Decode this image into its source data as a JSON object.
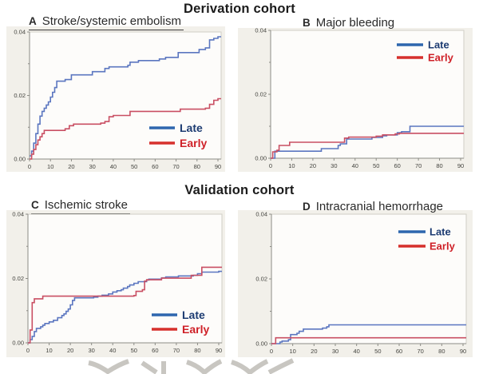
{
  "headings": {
    "derivation": "Derivation cohort",
    "validation": "Validation cohort"
  },
  "legend": {
    "late_label": "Late",
    "early_label": "Early"
  },
  "colors": {
    "late_curve": "#5b76c0",
    "early_curve": "#c94f63",
    "late_swatch": "#2e66ae",
    "early_swatch": "#d6302c",
    "late_text": "#1d3c72",
    "early_text": "#cf2128",
    "axis": "#8c8c86",
    "frame": "#d0cec7",
    "panel_bg": "#f2f0ea",
    "plot_bg": "#fdfcfa",
    "tick_text": "#44443f",
    "watermark": "#c8c6c1"
  },
  "chart_data": [
    {
      "id": "A",
      "panel_letter": "A",
      "title": "Stroke/systemic embolism",
      "type": "line",
      "step": true,
      "xlim": [
        0,
        90
      ],
      "ylim": [
        0,
        0.04
      ],
      "x_ticks": [
        0,
        10,
        20,
        30,
        40,
        50,
        60,
        70,
        80,
        90
      ],
      "y_ticks": [
        {
          "v": 0,
          "label": "0.00"
        },
        {
          "v": 0.02,
          "label": "0.02"
        },
        {
          "v": 0.04,
          "label": "0.04"
        }
      ],
      "y_minor_ticks": [
        0.01,
        0.03
      ],
      "legend_position": "middle-right",
      "series": [
        {
          "name": "Late",
          "key": "late",
          "points": [
            [
              0,
              0.001
            ],
            [
              1,
              0.0025
            ],
            [
              2,
              0.005
            ],
            [
              3,
              0.008
            ],
            [
              4,
              0.011
            ],
            [
              5,
              0.0135
            ],
            [
              6,
              0.015
            ],
            [
              7,
              0.016
            ],
            [
              8,
              0.017
            ],
            [
              9,
              0.018
            ],
            [
              10,
              0.0195
            ],
            [
              11,
              0.021
            ],
            [
              12,
              0.0225
            ],
            [
              13,
              0.0245
            ],
            [
              17,
              0.025
            ],
            [
              20,
              0.0265
            ],
            [
              30,
              0.0275
            ],
            [
              36,
              0.0285
            ],
            [
              38,
              0.029
            ],
            [
              47,
              0.0295
            ],
            [
              48,
              0.0305
            ],
            [
              52,
              0.031
            ],
            [
              62,
              0.0315
            ],
            [
              65,
              0.032
            ],
            [
              71,
              0.0335
            ],
            [
              81,
              0.0345
            ],
            [
              84,
              0.035
            ],
            [
              86,
              0.0375
            ],
            [
              88,
              0.038
            ],
            [
              90,
              0.0385
            ]
          ]
        },
        {
          "name": "Early",
          "key": "early",
          "points": [
            [
              0,
              0
            ],
            [
              1,
              0.0015
            ],
            [
              2,
              0.003
            ],
            [
              3,
              0.0045
            ],
            [
              4,
              0.006
            ],
            [
              5,
              0.007
            ],
            [
              6,
              0.008
            ],
            [
              7,
              0.009
            ],
            [
              17,
              0.0095
            ],
            [
              19,
              0.0105
            ],
            [
              21,
              0.011
            ],
            [
              34,
              0.0113
            ],
            [
              36,
              0.0118
            ],
            [
              38,
              0.0133
            ],
            [
              40,
              0.0137
            ],
            [
              48,
              0.015
            ],
            [
              72,
              0.0157
            ],
            [
              84,
              0.016
            ],
            [
              86,
              0.0172
            ],
            [
              88,
              0.0185
            ],
            [
              90,
              0.019
            ]
          ]
        }
      ]
    },
    {
      "id": "B",
      "panel_letter": "B",
      "title": "Major bleeding",
      "type": "line",
      "step": true,
      "xlim": [
        0,
        90
      ],
      "ylim": [
        0,
        0.04
      ],
      "x_ticks": [
        0,
        10,
        20,
        30,
        40,
        50,
        60,
        70,
        80,
        90
      ],
      "y_ticks": [
        {
          "v": 0,
          "label": "0.00"
        },
        {
          "v": 0.02,
          "label": "0.02"
        },
        {
          "v": 0.04,
          "label": "0.04"
        }
      ],
      "y_minor_ticks": [
        0.01,
        0.03
      ],
      "legend_position": "top-right",
      "series": [
        {
          "name": "Late",
          "key": "late",
          "points": [
            [
              0,
              0
            ],
            [
              2,
              0.0022
            ],
            [
              24,
              0.003
            ],
            [
              32,
              0.004
            ],
            [
              33,
              0.0045
            ],
            [
              36,
              0.006
            ],
            [
              48,
              0.0065
            ],
            [
              53,
              0.007
            ],
            [
              55,
              0.0073
            ],
            [
              60,
              0.008
            ],
            [
              62,
              0.0083
            ],
            [
              66,
              0.01
            ],
            [
              90,
              0.01
            ]
          ]
        },
        {
          "name": "Early",
          "key": "early",
          "points": [
            [
              0,
              0
            ],
            [
              1,
              0.002
            ],
            [
              3,
              0.0025
            ],
            [
              4,
              0.004
            ],
            [
              9,
              0.005
            ],
            [
              35,
              0.0063
            ],
            [
              37,
              0.0066
            ],
            [
              50,
              0.0069
            ],
            [
              53,
              0.0073
            ],
            [
              59,
              0.0076
            ],
            [
              61,
              0.0078
            ],
            [
              90,
              0.0078
            ]
          ]
        }
      ]
    },
    {
      "id": "C",
      "panel_letter": "C",
      "title": "Ischemic stroke",
      "type": "line",
      "step": true,
      "xlim": [
        0,
        90
      ],
      "ylim": [
        0,
        0.04
      ],
      "x_ticks": [
        0,
        10,
        20,
        30,
        40,
        50,
        60,
        70,
        80,
        90
      ],
      "y_ticks": [
        {
          "v": 0,
          "label": "0.00"
        },
        {
          "v": 0.02,
          "label": "0.02"
        },
        {
          "v": 0.04,
          "label": "0.04"
        }
      ],
      "y_minor_ticks": [
        0.01,
        0.03
      ],
      "legend_position": "bottom-right",
      "series": [
        {
          "name": "Late",
          "key": "late",
          "points": [
            [
              0,
              0
            ],
            [
              1,
              0.001
            ],
            [
              2,
              0.002
            ],
            [
              3,
              0.0035
            ],
            [
              4,
              0.0045
            ],
            [
              6,
              0.005
            ],
            [
              7,
              0.0055
            ],
            [
              8,
              0.006
            ],
            [
              10,
              0.0065
            ],
            [
              12,
              0.007
            ],
            [
              14,
              0.0078
            ],
            [
              16,
              0.0085
            ],
            [
              17,
              0.009
            ],
            [
              18,
              0.0098
            ],
            [
              19,
              0.0105
            ],
            [
              20,
              0.0118
            ],
            [
              21,
              0.0132
            ],
            [
              22,
              0.014
            ],
            [
              31,
              0.0142
            ],
            [
              33,
              0.0145
            ],
            [
              35,
              0.0148
            ],
            [
              38,
              0.0152
            ],
            [
              40,
              0.0158
            ],
            [
              42,
              0.0162
            ],
            [
              44,
              0.0165
            ],
            [
              45,
              0.017
            ],
            [
              47,
              0.0175
            ],
            [
              48,
              0.018
            ],
            [
              50,
              0.0185
            ],
            [
              52,
              0.019
            ],
            [
              56,
              0.0195
            ],
            [
              57,
              0.0198
            ],
            [
              63,
              0.0202
            ],
            [
              65,
              0.0205
            ],
            [
              71,
              0.0208
            ],
            [
              78,
              0.021
            ],
            [
              80,
              0.0215
            ],
            [
              82,
              0.022
            ],
            [
              90,
              0.0222
            ]
          ]
        },
        {
          "name": "Early",
          "key": "early",
          "points": [
            [
              0,
              0
            ],
            [
              1,
              0.004
            ],
            [
              2,
              0.0125
            ],
            [
              3,
              0.0137
            ],
            [
              7,
              0.0145
            ],
            [
              50,
              0.0147
            ],
            [
              51,
              0.016
            ],
            [
              54,
              0.0165
            ],
            [
              55,
              0.0192
            ],
            [
              56,
              0.0196
            ],
            [
              63,
              0.0201
            ],
            [
              77,
              0.021
            ],
            [
              82,
              0.0235
            ],
            [
              90,
              0.0235
            ]
          ]
        }
      ]
    },
    {
      "id": "D",
      "panel_letter": "D",
      "title": "Intracranial hemorrhage",
      "type": "line",
      "step": true,
      "xlim": [
        0,
        90
      ],
      "ylim": [
        0,
        0.04
      ],
      "x_ticks": [
        0,
        10,
        20,
        30,
        40,
        50,
        60,
        70,
        80,
        90
      ],
      "y_ticks": [
        {
          "v": 0,
          "label": "0.00"
        },
        {
          "v": 0.02,
          "label": "0.02"
        },
        {
          "v": 0.04,
          "label": "0.04"
        }
      ],
      "y_minor_ticks": [
        0.01,
        0.03
      ],
      "legend_position": "top-right",
      "series": [
        {
          "name": "Late",
          "key": "late",
          "points": [
            [
              0,
              0
            ],
            [
              4,
              0.0005
            ],
            [
              5,
              0.0008
            ],
            [
              8,
              0.0012
            ],
            [
              9,
              0.0028
            ],
            [
              12,
              0.0032
            ],
            [
              13,
              0.0038
            ],
            [
              15,
              0.0045
            ],
            [
              24,
              0.0048
            ],
            [
              26,
              0.0052
            ],
            [
              27,
              0.0058
            ],
            [
              90,
              0.0058
            ]
          ]
        },
        {
          "name": "Early",
          "key": "early",
          "points": [
            [
              0,
              0
            ],
            [
              2,
              0.0018
            ],
            [
              90,
              0.0018
            ]
          ]
        }
      ]
    }
  ]
}
